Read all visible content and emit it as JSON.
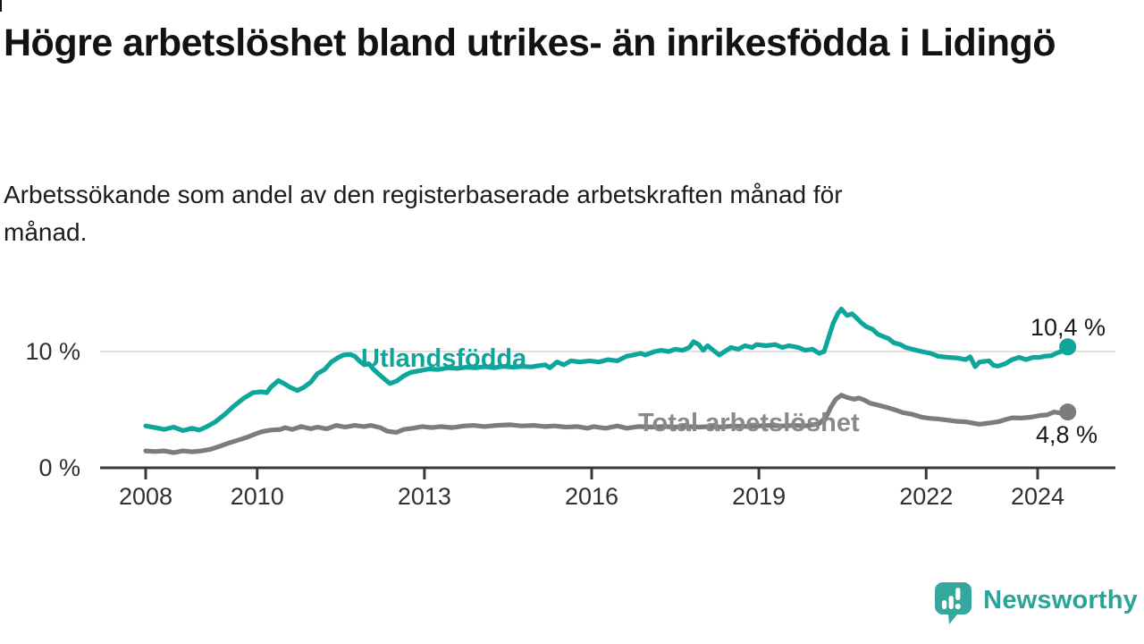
{
  "header": {
    "title": "Högre arbetslöshet bland utrikes- än inrikesfödda i Lidingö",
    "subtitle": "Arbetssökande som andel av den registerbaserade arbetskraften månad för månad."
  },
  "branding": {
    "logo_text": "Newsworthy",
    "logo_icon": "speech-bubble-with-bar-chart-and-exclamation",
    "logo_color": "#35a79c",
    "logo_text_color": "#28a59a"
  },
  "colors": {
    "utlandsfodda": "#0ea69a",
    "total": "#7c7c7c",
    "axis": "#383838",
    "gridline": "#d6d6d6",
    "value_label": "#191919"
  },
  "chart_data": {
    "type": "line",
    "title": "",
    "xlabel": "",
    "ylabel": "",
    "x_range_years": [
      2007.2,
      2025.4
    ],
    "y_range_pct": [
      0,
      14.8
    ],
    "grid": "horizontal-at-10-only",
    "legend_position": "inline-labels-on-lines",
    "y_axis": {
      "ticks": [
        {
          "value": 0,
          "label": "0 %"
        },
        {
          "value": 10,
          "label": "10 %"
        }
      ],
      "gridlines": [
        10
      ]
    },
    "x_axis": {
      "ticks": [
        {
          "year": 2008,
          "label": "2008"
        },
        {
          "year": 2010,
          "label": "2010"
        },
        {
          "year": 2013,
          "label": "2013"
        },
        {
          "year": 2016,
          "label": "2016"
        },
        {
          "year": 2019,
          "label": "2019"
        },
        {
          "year": 2022,
          "label": "2022"
        },
        {
          "year": 2024,
          "label": "2024"
        }
      ]
    },
    "series": [
      {
        "name": "Utlandsfödda",
        "color": "#0ea69a",
        "end_value": 10.4,
        "end_label": "10,4 %",
        "points": [
          [
            2008.0,
            3.6
          ],
          [
            2008.17,
            3.45
          ],
          [
            2008.33,
            3.3
          ],
          [
            2008.5,
            3.5
          ],
          [
            2008.67,
            3.2
          ],
          [
            2008.83,
            3.4
          ],
          [
            2008.96,
            3.25
          ],
          [
            2009.08,
            3.5
          ],
          [
            2009.25,
            3.95
          ],
          [
            2009.42,
            4.6
          ],
          [
            2009.58,
            5.3
          ],
          [
            2009.75,
            5.95
          ],
          [
            2009.92,
            6.45
          ],
          [
            2010.08,
            6.55
          ],
          [
            2010.17,
            6.45
          ],
          [
            2010.25,
            6.95
          ],
          [
            2010.38,
            7.5
          ],
          [
            2010.5,
            7.2
          ],
          [
            2010.58,
            6.95
          ],
          [
            2010.72,
            6.65
          ],
          [
            2010.83,
            6.9
          ],
          [
            2010.96,
            7.35
          ],
          [
            2011.08,
            8.1
          ],
          [
            2011.21,
            8.45
          ],
          [
            2011.33,
            9.1
          ],
          [
            2011.46,
            9.5
          ],
          [
            2011.55,
            9.7
          ],
          [
            2011.67,
            9.75
          ],
          [
            2011.75,
            9.6
          ],
          [
            2011.83,
            9.2
          ],
          [
            2011.92,
            8.85
          ],
          [
            2012.0,
            8.95
          ],
          [
            2012.08,
            8.5
          ],
          [
            2012.17,
            8.1
          ],
          [
            2012.29,
            7.6
          ],
          [
            2012.38,
            7.25
          ],
          [
            2012.5,
            7.45
          ],
          [
            2012.63,
            7.9
          ],
          [
            2012.75,
            8.2
          ],
          [
            2012.92,
            8.35
          ],
          [
            2013.08,
            8.5
          ],
          [
            2013.25,
            8.45
          ],
          [
            2013.42,
            8.6
          ],
          [
            2013.58,
            8.55
          ],
          [
            2013.75,
            8.65
          ],
          [
            2013.92,
            8.6
          ],
          [
            2014.08,
            8.7
          ],
          [
            2014.25,
            8.6
          ],
          [
            2014.42,
            8.72
          ],
          [
            2014.58,
            8.65
          ],
          [
            2014.75,
            8.72
          ],
          [
            2014.92,
            8.68
          ],
          [
            2015.08,
            8.8
          ],
          [
            2015.17,
            8.85
          ],
          [
            2015.25,
            8.6
          ],
          [
            2015.38,
            9.1
          ],
          [
            2015.5,
            8.85
          ],
          [
            2015.63,
            9.2
          ],
          [
            2015.79,
            9.1
          ],
          [
            2015.96,
            9.2
          ],
          [
            2016.13,
            9.1
          ],
          [
            2016.29,
            9.3
          ],
          [
            2016.46,
            9.2
          ],
          [
            2016.63,
            9.6
          ],
          [
            2016.75,
            9.7
          ],
          [
            2016.88,
            9.85
          ],
          [
            2016.96,
            9.7
          ],
          [
            2017.13,
            10.0
          ],
          [
            2017.25,
            10.1
          ],
          [
            2017.38,
            10.0
          ],
          [
            2017.5,
            10.2
          ],
          [
            2017.63,
            10.1
          ],
          [
            2017.75,
            10.35
          ],
          [
            2017.83,
            10.85
          ],
          [
            2017.92,
            10.6
          ],
          [
            2018.0,
            10.1
          ],
          [
            2018.08,
            10.5
          ],
          [
            2018.21,
            10.0
          ],
          [
            2018.29,
            9.7
          ],
          [
            2018.42,
            10.1
          ],
          [
            2018.5,
            10.35
          ],
          [
            2018.63,
            10.2
          ],
          [
            2018.75,
            10.5
          ],
          [
            2018.88,
            10.35
          ],
          [
            2018.96,
            10.6
          ],
          [
            2019.13,
            10.5
          ],
          [
            2019.29,
            10.6
          ],
          [
            2019.42,
            10.35
          ],
          [
            2019.54,
            10.5
          ],
          [
            2019.71,
            10.35
          ],
          [
            2019.83,
            10.1
          ],
          [
            2019.96,
            10.2
          ],
          [
            2020.08,
            9.85
          ],
          [
            2020.17,
            10.0
          ],
          [
            2020.25,
            11.2
          ],
          [
            2020.33,
            12.4
          ],
          [
            2020.42,
            13.3
          ],
          [
            2020.48,
            13.65
          ],
          [
            2020.58,
            13.1
          ],
          [
            2020.67,
            13.25
          ],
          [
            2020.75,
            12.9
          ],
          [
            2020.83,
            12.5
          ],
          [
            2020.92,
            12.15
          ],
          [
            2021.04,
            11.9
          ],
          [
            2021.13,
            11.5
          ],
          [
            2021.25,
            11.25
          ],
          [
            2021.33,
            11.1
          ],
          [
            2021.42,
            10.75
          ],
          [
            2021.54,
            10.6
          ],
          [
            2021.63,
            10.35
          ],
          [
            2021.75,
            10.2
          ],
          [
            2021.83,
            10.1
          ],
          [
            2021.92,
            10.0
          ],
          [
            2022.08,
            9.85
          ],
          [
            2022.21,
            9.6
          ],
          [
            2022.38,
            9.5
          ],
          [
            2022.54,
            9.45
          ],
          [
            2022.71,
            9.3
          ],
          [
            2022.79,
            9.55
          ],
          [
            2022.88,
            8.7
          ],
          [
            2022.96,
            9.1
          ],
          [
            2023.13,
            9.2
          ],
          [
            2023.21,
            8.8
          ],
          [
            2023.29,
            8.75
          ],
          [
            2023.42,
            8.95
          ],
          [
            2023.54,
            9.3
          ],
          [
            2023.67,
            9.5
          ],
          [
            2023.79,
            9.3
          ],
          [
            2023.92,
            9.5
          ],
          [
            2024.04,
            9.5
          ],
          [
            2024.13,
            9.6
          ],
          [
            2024.25,
            9.65
          ],
          [
            2024.33,
            9.85
          ],
          [
            2024.42,
            10.0
          ],
          [
            2024.5,
            10.25
          ],
          [
            2024.54,
            10.4
          ]
        ]
      },
      {
        "name": "Total arbetslöshet",
        "color": "#7c7c7c",
        "end_value": 4.8,
        "end_label": "4,8 %",
        "points": [
          [
            2008.0,
            1.45
          ],
          [
            2008.17,
            1.4
          ],
          [
            2008.33,
            1.45
          ],
          [
            2008.5,
            1.3
          ],
          [
            2008.67,
            1.45
          ],
          [
            2008.83,
            1.38
          ],
          [
            2009.0,
            1.45
          ],
          [
            2009.17,
            1.6
          ],
          [
            2009.33,
            1.85
          ],
          [
            2009.5,
            2.15
          ],
          [
            2009.67,
            2.4
          ],
          [
            2009.83,
            2.65
          ],
          [
            2009.96,
            2.9
          ],
          [
            2010.08,
            3.1
          ],
          [
            2010.25,
            3.25
          ],
          [
            2010.42,
            3.3
          ],
          [
            2010.5,
            3.45
          ],
          [
            2010.63,
            3.3
          ],
          [
            2010.79,
            3.55
          ],
          [
            2010.96,
            3.35
          ],
          [
            2011.08,
            3.5
          ],
          [
            2011.25,
            3.35
          ],
          [
            2011.42,
            3.65
          ],
          [
            2011.58,
            3.5
          ],
          [
            2011.75,
            3.65
          ],
          [
            2011.92,
            3.55
          ],
          [
            2012.04,
            3.65
          ],
          [
            2012.21,
            3.45
          ],
          [
            2012.33,
            3.15
          ],
          [
            2012.5,
            3.05
          ],
          [
            2012.63,
            3.3
          ],
          [
            2012.79,
            3.4
          ],
          [
            2012.96,
            3.55
          ],
          [
            2013.13,
            3.45
          ],
          [
            2013.29,
            3.55
          ],
          [
            2013.5,
            3.45
          ],
          [
            2013.71,
            3.6
          ],
          [
            2013.88,
            3.65
          ],
          [
            2014.08,
            3.55
          ],
          [
            2014.29,
            3.65
          ],
          [
            2014.54,
            3.7
          ],
          [
            2014.75,
            3.6
          ],
          [
            2014.96,
            3.65
          ],
          [
            2015.17,
            3.55
          ],
          [
            2015.33,
            3.6
          ],
          [
            2015.54,
            3.5
          ],
          [
            2015.75,
            3.55
          ],
          [
            2015.92,
            3.4
          ],
          [
            2016.04,
            3.55
          ],
          [
            2016.25,
            3.4
          ],
          [
            2016.46,
            3.6
          ],
          [
            2016.63,
            3.4
          ],
          [
            2016.83,
            3.55
          ],
          [
            2017.08,
            3.5
          ],
          [
            2017.29,
            3.55
          ],
          [
            2017.5,
            3.5
          ],
          [
            2017.71,
            3.55
          ],
          [
            2017.92,
            3.5
          ],
          [
            2018.13,
            3.55
          ],
          [
            2018.33,
            3.5
          ],
          [
            2018.54,
            3.6
          ],
          [
            2018.79,
            3.55
          ],
          [
            2019.0,
            3.6
          ],
          [
            2019.21,
            3.65
          ],
          [
            2019.42,
            3.6
          ],
          [
            2019.63,
            3.65
          ],
          [
            2019.83,
            3.6
          ],
          [
            2019.96,
            3.7
          ],
          [
            2020.08,
            3.8
          ],
          [
            2020.21,
            4.4
          ],
          [
            2020.29,
            5.2
          ],
          [
            2020.38,
            5.9
          ],
          [
            2020.48,
            6.25
          ],
          [
            2020.58,
            6.05
          ],
          [
            2020.71,
            5.9
          ],
          [
            2020.79,
            6.0
          ],
          [
            2020.88,
            5.85
          ],
          [
            2021.0,
            5.55
          ],
          [
            2021.13,
            5.4
          ],
          [
            2021.29,
            5.2
          ],
          [
            2021.46,
            4.95
          ],
          [
            2021.58,
            4.75
          ],
          [
            2021.75,
            4.6
          ],
          [
            2021.92,
            4.35
          ],
          [
            2022.08,
            4.25
          ],
          [
            2022.21,
            4.2
          ],
          [
            2022.38,
            4.1
          ],
          [
            2022.54,
            4.0
          ],
          [
            2022.71,
            3.95
          ],
          [
            2022.83,
            3.85
          ],
          [
            2022.96,
            3.75
          ],
          [
            2023.13,
            3.85
          ],
          [
            2023.29,
            3.95
          ],
          [
            2023.42,
            4.15
          ],
          [
            2023.54,
            4.3
          ],
          [
            2023.71,
            4.28
          ],
          [
            2023.88,
            4.35
          ],
          [
            2024.04,
            4.5
          ],
          [
            2024.17,
            4.55
          ],
          [
            2024.29,
            4.8
          ],
          [
            2024.42,
            4.7
          ],
          [
            2024.54,
            4.8
          ]
        ]
      }
    ]
  }
}
